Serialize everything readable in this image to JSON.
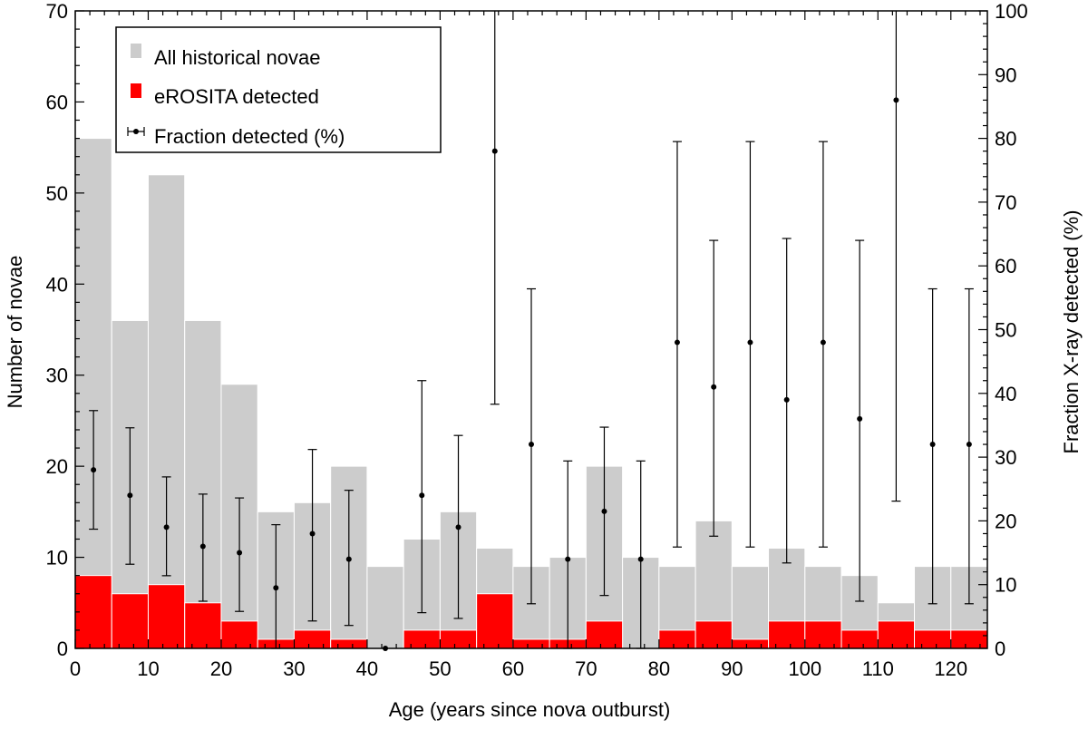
{
  "chart_data": {
    "type": "bar",
    "x_bins_start": [
      0,
      5,
      10,
      15,
      20,
      25,
      30,
      35,
      40,
      45,
      50,
      55,
      60,
      65,
      70,
      75,
      80,
      85,
      90,
      95,
      100,
      105,
      110,
      115,
      120
    ],
    "bin_width": 5,
    "series": [
      {
        "name": "All historical novae",
        "color": "#cccccc",
        "values": [
          56,
          36,
          52,
          36,
          29,
          15,
          16,
          20,
          9,
          12,
          15,
          11,
          9,
          10,
          20,
          10,
          9,
          14,
          9,
          11,
          9,
          8,
          5,
          9,
          9
        ]
      },
      {
        "name": "eROSITA detected",
        "color": "#ff0000",
        "values": [
          8,
          6,
          7,
          5,
          3,
          1,
          2,
          1,
          0,
          2,
          2,
          6,
          1,
          1,
          3,
          0,
          2,
          3,
          1,
          3,
          3,
          2,
          3,
          2,
          2
        ]
      },
      {
        "name": "Fraction detected (%)",
        "color": "#000000",
        "axis": "right",
        "x": [
          2.5,
          7.5,
          12.5,
          17.5,
          22.5,
          27.5,
          32.5,
          37.5,
          42.5,
          47.5,
          52.5,
          57.5,
          62.5,
          67.5,
          72.5,
          77.5,
          82.5,
          87.5,
          92.5,
          97.5,
          102.5,
          107.5,
          112.5,
          117.5,
          122.5
        ],
        "values": [
          28,
          24,
          19,
          16,
          15,
          9.5,
          18,
          14,
          0,
          24,
          19,
          78,
          32,
          14,
          21.5,
          14,
          48,
          41,
          48,
          39,
          48,
          36,
          86,
          32,
          32
        ],
        "err_low": [
          18.7,
          13.2,
          11.4,
          7.4,
          5.8,
          0,
          4.3,
          3.6,
          0,
          5.6,
          4.7,
          38.3,
          7.0,
          0,
          8.3,
          0,
          15.9,
          17.6,
          15.9,
          13.4,
          15.9,
          7.4,
          23.1,
          7.0,
          7.0
        ],
        "err_high": [
          37.3,
          34.6,
          26.9,
          24.2,
          23.6,
          19.4,
          31.2,
          24.8,
          0,
          42.0,
          33.4,
          100,
          56.4,
          29.4,
          34.7,
          29.4,
          79.5,
          64.0,
          79.5,
          64.3,
          79.5,
          64.0,
          100,
          56.4,
          56.4
        ]
      }
    ],
    "xlabel": "Age (years since nova outburst)",
    "ylabel": "Number of novae",
    "ylabel_right": "Fraction X-ray detected (%)",
    "xlim": [
      0,
      125
    ],
    "ylim": [
      0,
      70
    ],
    "ylim_right": [
      0,
      100
    ],
    "x_ticks": [
      0,
      10,
      20,
      30,
      40,
      50,
      60,
      70,
      80,
      90,
      100,
      110,
      120
    ],
    "y_ticks": [
      0,
      10,
      20,
      30,
      40,
      50,
      60,
      70
    ],
    "y_ticks_right": [
      0,
      10,
      20,
      30,
      40,
      50,
      60,
      70,
      80,
      90,
      100
    ],
    "legend": {
      "placement": "top-left",
      "entries": [
        "All historical novae",
        "eROSITA detected",
        "Fraction detected (%)"
      ]
    },
    "grid": false
  }
}
